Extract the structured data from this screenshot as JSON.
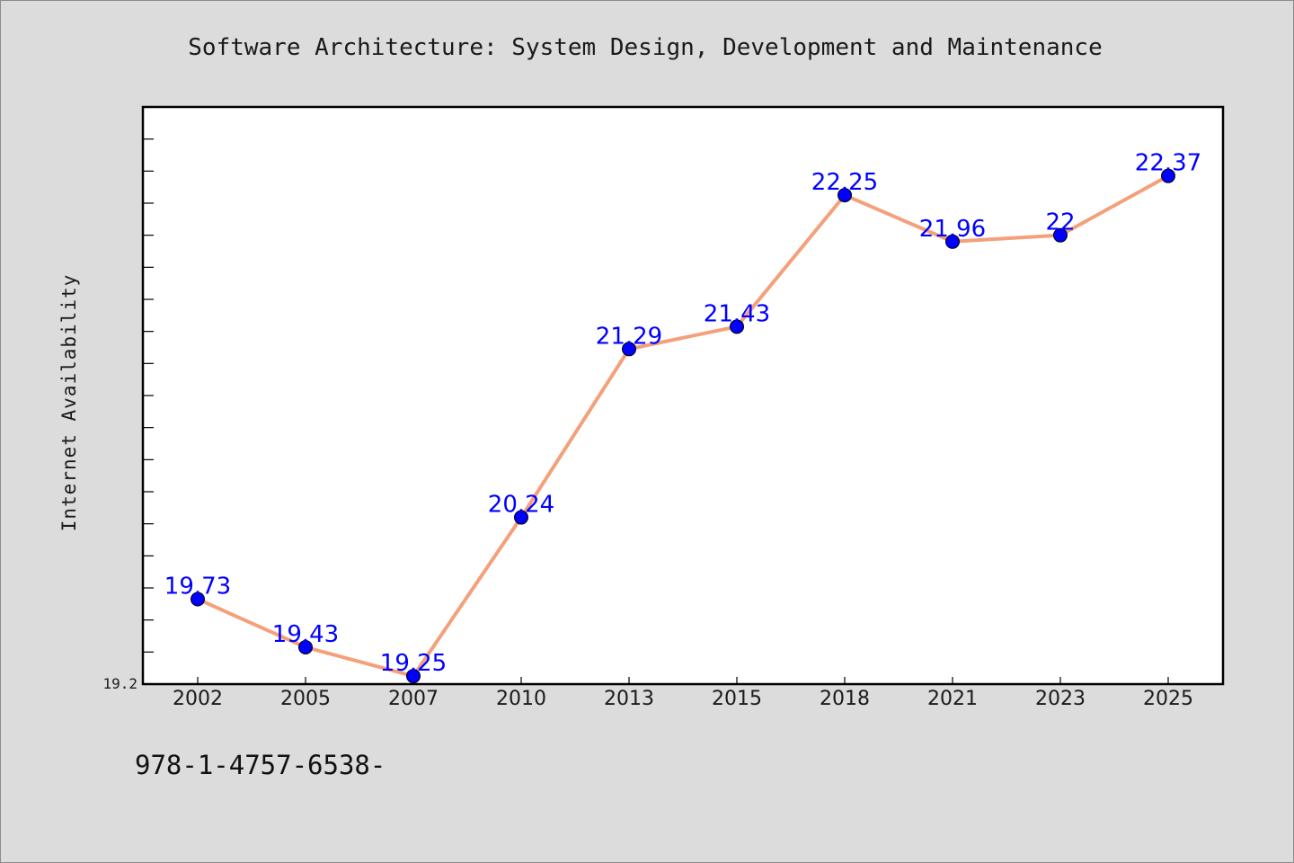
{
  "footnote": "978-1-4757-6538-",
  "chart_data": {
    "type": "line",
    "title": "Software Architecture: System Design, Development and Maintenance",
    "xlabel": "",
    "ylabel": "Internet Availability",
    "categories": [
      "2002",
      "2005",
      "2007",
      "2010",
      "2013",
      "2015",
      "2018",
      "2021",
      "2023",
      "2025"
    ],
    "series": [
      {
        "values": [
          19.73,
          19.43,
          19.25,
          20.24,
          21.29,
          21.43,
          22.25,
          21.96,
          22,
          22.37
        ],
        "line_color": "#f4a07a",
        "marker_color": "#0000ff"
      }
    ],
    "data_labels": [
      "19.73",
      "19.43",
      "19.25",
      "20.24",
      "21.29",
      "21.43",
      "22.25",
      "21.96",
      "22",
      "22.37"
    ],
    "ylim": [
      19.2,
      22.8
    ],
    "ytick_labels": [
      "19.2"
    ],
    "grid": false,
    "legend": "none"
  }
}
